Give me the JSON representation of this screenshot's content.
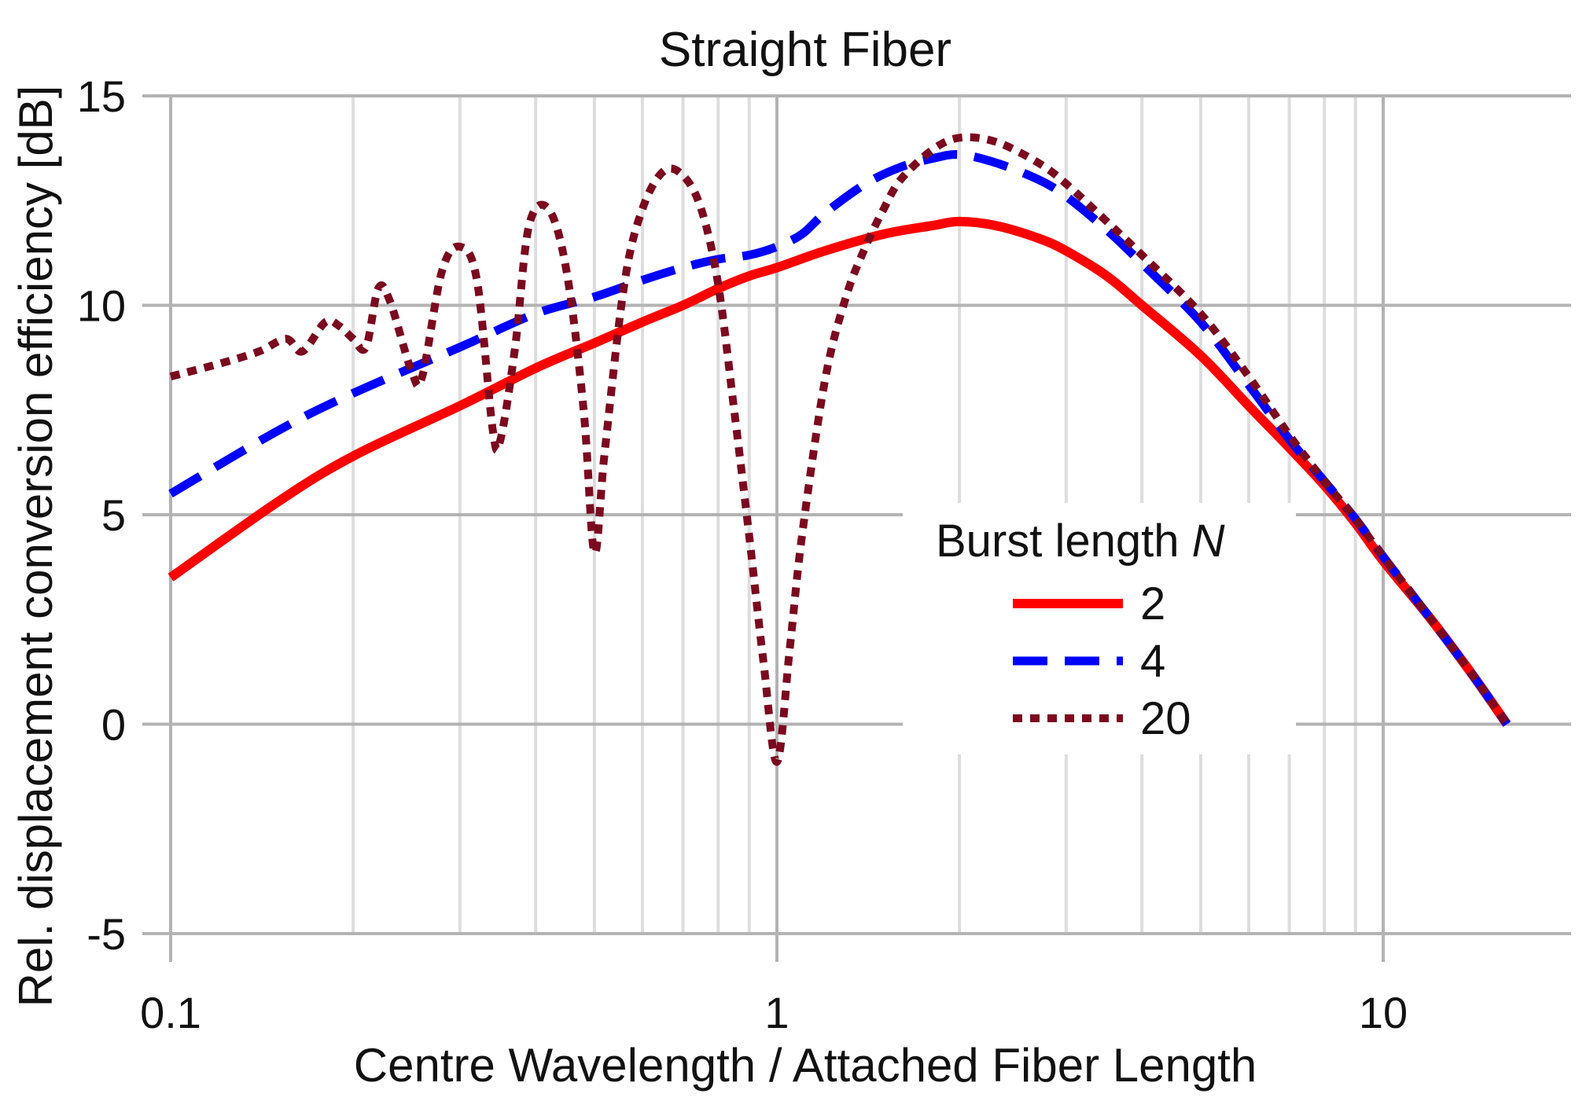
{
  "chart_data": {
    "type": "line",
    "title": "Straight Fiber",
    "xlabel": "Centre Wavelength / Attached Fiber Length",
    "ylabel": "Rel. displacement conversion efficiency [dB]",
    "xscale": "log",
    "xlim": [
      0.1,
      16
    ],
    "ylim": [
      -5,
      15
    ],
    "grid": true,
    "x_ticks": [
      {
        "value": 0.1,
        "label": "0.1"
      },
      {
        "value": 1,
        "label": "1"
      },
      {
        "value": 10,
        "label": "10"
      }
    ],
    "y_ticks": [
      {
        "value": 15,
        "label": "15"
      },
      {
        "value": 10,
        "label": "10"
      },
      {
        "value": 5,
        "label": "5"
      },
      {
        "value": 0,
        "label": "0"
      },
      {
        "value": -5,
        "label": "-5"
      }
    ],
    "legend": {
      "title_prefix": "Burst length ",
      "title_var": "N",
      "position": "center-right"
    },
    "series": [
      {
        "name": "2",
        "color": "#ff0000",
        "dash": "solid",
        "points": [
          [
            0.1,
            3.5
          ],
          [
            0.15,
            5.3
          ],
          [
            0.2,
            6.4
          ],
          [
            0.3,
            7.6
          ],
          [
            0.4,
            8.5
          ],
          [
            0.5,
            9.1
          ],
          [
            0.6,
            9.6
          ],
          [
            0.7,
            10.0
          ],
          [
            0.8,
            10.4
          ],
          [
            0.9,
            10.7
          ],
          [
            1.0,
            10.9
          ],
          [
            1.2,
            11.3
          ],
          [
            1.5,
            11.7
          ],
          [
            1.8,
            11.9
          ],
          [
            2.0,
            12.0
          ],
          [
            2.3,
            11.9
          ],
          [
            2.7,
            11.6
          ],
          [
            3.0,
            11.3
          ],
          [
            3.5,
            10.7
          ],
          [
            4.0,
            10.0
          ],
          [
            5.0,
            8.8
          ],
          [
            6.0,
            7.6
          ],
          [
            7.0,
            6.6
          ],
          [
            8.0,
            5.7
          ],
          [
            9.0,
            4.8
          ],
          [
            10.0,
            3.9
          ],
          [
            12.0,
            2.5
          ],
          [
            14.0,
            1.2
          ],
          [
            16.0,
            0.0
          ]
        ]
      },
      {
        "name": "4",
        "color": "#0000ff",
        "dash": "dashed",
        "points": [
          [
            0.1,
            5.5
          ],
          [
            0.15,
            7.0
          ],
          [
            0.2,
            7.9
          ],
          [
            0.3,
            9.0
          ],
          [
            0.4,
            9.8
          ],
          [
            0.5,
            10.2
          ],
          [
            0.6,
            10.6
          ],
          [
            0.7,
            10.9
          ],
          [
            0.8,
            11.1
          ],
          [
            0.9,
            11.2
          ],
          [
            1.0,
            11.4
          ],
          [
            1.1,
            11.7
          ],
          [
            1.2,
            12.2
          ],
          [
            1.4,
            12.9
          ],
          [
            1.6,
            13.3
          ],
          [
            1.8,
            13.5
          ],
          [
            2.0,
            13.6
          ],
          [
            2.3,
            13.4
          ],
          [
            2.7,
            13.0
          ],
          [
            3.0,
            12.6
          ],
          [
            3.5,
            11.8
          ],
          [
            4.0,
            11.0
          ],
          [
            5.0,
            9.6
          ],
          [
            6.0,
            8.1
          ],
          [
            7.0,
            6.8
          ],
          [
            8.0,
            5.8
          ],
          [
            9.0,
            4.9
          ],
          [
            10.0,
            4.0
          ],
          [
            12.0,
            2.5
          ],
          [
            14.0,
            1.2
          ],
          [
            16.0,
            0.0
          ]
        ]
      },
      {
        "name": "20",
        "color": "#7b0a1f",
        "dash": "dotted",
        "points": [
          [
            0.1,
            8.3
          ],
          [
            0.12,
            8.6
          ],
          [
            0.14,
            8.9
          ],
          [
            0.155,
            9.2
          ],
          [
            0.165,
            8.9
          ],
          [
            0.18,
            9.6
          ],
          [
            0.19,
            9.5
          ],
          [
            0.2,
            9.2
          ],
          [
            0.21,
            9.0
          ],
          [
            0.22,
            10.4
          ],
          [
            0.23,
            10.1
          ],
          [
            0.25,
            8.4
          ],
          [
            0.26,
            8.3
          ],
          [
            0.28,
            10.8
          ],
          [
            0.3,
            11.4
          ],
          [
            0.32,
            10.6
          ],
          [
            0.34,
            7.0
          ],
          [
            0.35,
            6.8
          ],
          [
            0.37,
            9.0
          ],
          [
            0.39,
            11.9
          ],
          [
            0.42,
            12.3
          ],
          [
            0.45,
            10.8
          ],
          [
            0.48,
            7.5
          ],
          [
            0.5,
            4.1
          ],
          [
            0.52,
            6.5
          ],
          [
            0.56,
            10.5
          ],
          [
            0.6,
            12.3
          ],
          [
            0.65,
            13.2
          ],
          [
            0.7,
            13.1
          ],
          [
            0.75,
            12.3
          ],
          [
            0.8,
            10.5
          ],
          [
            0.85,
            7.5
          ],
          [
            0.9,
            4.5
          ],
          [
            0.95,
            1.5
          ],
          [
            1.0,
            -0.9
          ],
          [
            1.05,
            1.8
          ],
          [
            1.1,
            4.5
          ],
          [
            1.2,
            8.2
          ],
          [
            1.3,
            10.2
          ],
          [
            1.4,
            11.4
          ],
          [
            1.5,
            12.3
          ],
          [
            1.6,
            13.0
          ],
          [
            1.8,
            13.7
          ],
          [
            2.0,
            14.0
          ],
          [
            2.3,
            13.9
          ],
          [
            2.7,
            13.4
          ],
          [
            3.0,
            12.9
          ],
          [
            3.5,
            12.0
          ],
          [
            4.0,
            11.2
          ],
          [
            5.0,
            9.8
          ],
          [
            6.0,
            8.3
          ],
          [
            7.0,
            6.9
          ],
          [
            8.0,
            5.8
          ],
          [
            9.0,
            4.9
          ],
          [
            10.0,
            4.0
          ],
          [
            12.0,
            2.5
          ],
          [
            14.0,
            1.2
          ],
          [
            16.0,
            0.0
          ]
        ]
      }
    ]
  }
}
